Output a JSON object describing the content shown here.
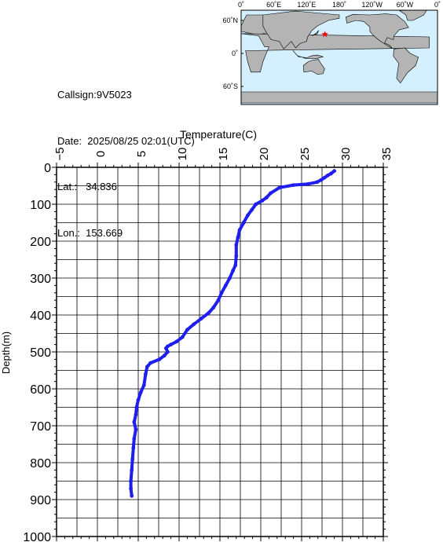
{
  "info": {
    "callsign": "Callsign:9V5023",
    "date": "Date:  2025/08/25 02:01(UTC)",
    "lat": "Lat.:   34.836",
    "lon": "Lon.:  153.669"
  },
  "map": {
    "top_labels": [
      "0˚",
      "60˚E",
      "120˚E",
      "180˚",
      "120˚W",
      "60˚W",
      "0˚"
    ],
    "left_labels": [
      "60˚N",
      "0˚",
      "60˚S"
    ],
    "ocean_color": "#d4f0ff",
    "land_color": "#b4b4b4",
    "marker_color": "#ff0000",
    "marker_lon": 153.669,
    "marker_lat": 34.836
  },
  "chart_data": {
    "type": "line",
    "title": "",
    "xlabel": "Temperature(C)",
    "ylabel": "Depth(m)",
    "xlim": [
      -5,
      35
    ],
    "ylim": [
      0,
      1000
    ],
    "y_inverted": true,
    "x_ticks": [
      -5,
      0,
      5,
      10,
      15,
      20,
      25,
      30,
      35
    ],
    "y_ticks": [
      0,
      100,
      200,
      300,
      400,
      500,
      600,
      700,
      800,
      900,
      1000
    ],
    "grid": true,
    "series_color": "#1e1ef0",
    "points": [
      [
        29.0,
        10
      ],
      [
        28.6,
        17
      ],
      [
        28.2,
        22
      ],
      [
        27.8,
        28
      ],
      [
        27.4,
        34
      ],
      [
        26.9,
        40
      ],
      [
        25.8,
        45
      ],
      [
        24.0,
        48
      ],
      [
        22.3,
        55
      ],
      [
        21.2,
        70
      ],
      [
        20.7,
        82
      ],
      [
        20.2,
        90
      ],
      [
        19.4,
        100
      ],
      [
        18.9,
        115
      ],
      [
        18.4,
        130
      ],
      [
        17.9,
        150
      ],
      [
        17.4,
        170
      ],
      [
        17.2,
        190
      ],
      [
        17.0,
        210
      ],
      [
        17.0,
        240
      ],
      [
        16.9,
        265
      ],
      [
        16.6,
        280
      ],
      [
        16.2,
        300
      ],
      [
        15.7,
        320
      ],
      [
        15.2,
        340
      ],
      [
        14.8,
        360
      ],
      [
        14.2,
        380
      ],
      [
        13.6,
        395
      ],
      [
        12.7,
        410
      ],
      [
        11.8,
        425
      ],
      [
        11.0,
        440
      ],
      [
        10.4,
        460
      ],
      [
        9.7,
        472
      ],
      [
        9.0,
        480
      ],
      [
        8.6,
        485
      ],
      [
        8.4,
        490
      ],
      [
        8.6,
        500
      ],
      [
        8.2,
        510
      ],
      [
        7.6,
        520
      ],
      [
        6.5,
        530
      ],
      [
        6.1,
        540
      ],
      [
        5.9,
        560
      ],
      [
        5.7,
        590
      ],
      [
        5.3,
        610
      ],
      [
        5.0,
        630
      ],
      [
        4.8,
        650
      ],
      [
        4.7,
        670
      ],
      [
        4.5,
        690
      ],
      [
        4.7,
        710
      ],
      [
        4.5,
        735
      ],
      [
        4.4,
        760
      ],
      [
        4.3,
        790
      ],
      [
        4.2,
        820
      ],
      [
        4.1,
        850
      ],
      [
        4.1,
        870
      ],
      [
        4.2,
        890
      ]
    ]
  }
}
